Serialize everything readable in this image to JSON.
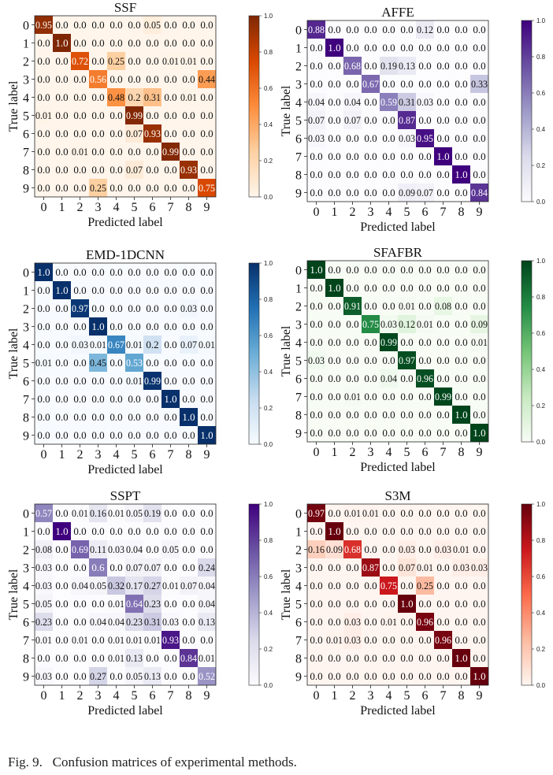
{
  "caption": "Fig. 9.   Confusion matrices of experimental methods.",
  "chart_data": [
    {
      "type": "heatmap",
      "title": "SSF",
      "xlabel": "Predicted label",
      "ylabel": "True label",
      "x_ticks": [
        "0",
        "1",
        "2",
        "3",
        "4",
        "5",
        "6",
        "7",
        "8",
        "9"
      ],
      "y_ticks": [
        "0",
        "1",
        "2",
        "3",
        "4",
        "5",
        "6",
        "7",
        "8",
        "9"
      ],
      "colormap": "Oranges",
      "colors": [
        "#fff5eb",
        "#fdd0a2",
        "#fd8d3c",
        "#d94801",
        "#7f2704"
      ],
      "colorbar_ticks": [
        "0.0",
        "0.2",
        "0.4",
        "0.6",
        "0.8",
        "1.0"
      ],
      "vmin": 0,
      "vmax": 1,
      "labels": [
        [
          "0.95",
          "0.0",
          "0.0",
          "0.0",
          "0.0",
          "0.0",
          "0.05",
          "0.0",
          "0.0",
          "0.0"
        ],
        [
          "0.0",
          "1.0",
          "0.0",
          "0.0",
          "0.0",
          "0.0",
          "0.0",
          "0.0",
          "0.0",
          "0.0"
        ],
        [
          "0.0",
          "0.0",
          "0.72",
          "0.0",
          "0.25",
          "0.0",
          "0.0",
          "0.01",
          "0.01",
          "0.0"
        ],
        [
          "0.0",
          "0.0",
          "0.0",
          "0.56",
          "0.0",
          "0.0",
          "0.0",
          "0.0",
          "0.0",
          "0.44"
        ],
        [
          "0.0",
          "0.0",
          "0.0",
          "0.0",
          "0.48",
          "0.2",
          "0.31",
          "0.0",
          "0.01",
          "0.0"
        ],
        [
          "0.01",
          "0.0",
          "0.0",
          "0.0",
          "0.0",
          "0.99",
          "0.0",
          "0.0",
          "0.0",
          "0.0"
        ],
        [
          "0.0",
          "0.0",
          "0.0",
          "0.0",
          "0.0",
          "0.07",
          "0.93",
          "0.0",
          "0.0",
          "0.0"
        ],
        [
          "0.0",
          "0.0",
          "0.01",
          "0.0",
          "0.0",
          "0.0",
          "0.0",
          "0.99",
          "0.0",
          "0.0"
        ],
        [
          "0.0",
          "0.0",
          "0.0",
          "0.0",
          "0.0",
          "0.07",
          "0.0",
          "0.0",
          "0.93",
          "0.0"
        ],
        [
          "0.0",
          "0.0",
          "0.0",
          "0.25",
          "0.0",
          "0.0",
          "0.0",
          "0.0",
          "0.0",
          "0.75"
        ]
      ]
    },
    {
      "type": "heatmap",
      "title": "AFFE",
      "xlabel": "Predicted label",
      "ylabel": "True label",
      "x_ticks": [
        "0",
        "1",
        "2",
        "3",
        "4",
        "5",
        "6",
        "7",
        "8",
        "9"
      ],
      "y_ticks": [
        "0",
        "1",
        "2",
        "3",
        "4",
        "5",
        "6",
        "7",
        "8",
        "9"
      ],
      "colormap": "Purples",
      "colors": [
        "#fcfbfd",
        "#dadaeb",
        "#9e9ac8",
        "#6a51a3",
        "#3f007d"
      ],
      "colorbar_ticks": [
        "0.0",
        "0.2",
        "0.4",
        "0.6",
        "0.8",
        "1.0"
      ],
      "vmin": 0,
      "vmax": 1,
      "labels": [
        [
          "0.88",
          "0.0",
          "0.0",
          "0.0",
          "0.0",
          "0.0",
          "0.12",
          "0.0",
          "0.0",
          "0.0"
        ],
        [
          "0.0",
          "1.0",
          "0.0",
          "0.0",
          "0.0",
          "0.0",
          "0.0",
          "0.0",
          "0.0",
          "0.0"
        ],
        [
          "0.0",
          "0.0",
          "0.68",
          "0.0",
          "0.19",
          "0.13",
          "0.0",
          "0.0",
          "0.0",
          "0.0"
        ],
        [
          "0.0",
          "0.0",
          "0.0",
          "0.67",
          "0.0",
          "0.0",
          "0.0",
          "0.0",
          "0.0",
          "0.33"
        ],
        [
          "0.04",
          "0.0",
          "0.04",
          "0.0",
          "0.59",
          "0.31",
          "0.03",
          "0.0",
          "0.0",
          "0.0"
        ],
        [
          "0.07",
          "0.0",
          "0.07",
          "0.0",
          "0.0",
          "0.87",
          "0.0",
          "0.0",
          "0.0",
          "0.0"
        ],
        [
          "0.03",
          "0.0",
          "0.0",
          "0.0",
          "0.0",
          "0.03",
          "0.95",
          "0.0",
          "0.0",
          "0.0"
        ],
        [
          "0.0",
          "0.0",
          "0.0",
          "0.0",
          "0.0",
          "0.0",
          "0.0",
          "1.0",
          "0.0",
          "0.0"
        ],
        [
          "0.0",
          "0.0",
          "0.0",
          "0.0",
          "0.0",
          "0.0",
          "0.0",
          "0.0",
          "1.0",
          "0.0"
        ],
        [
          "0.0",
          "0.0",
          "0.0",
          "0.0",
          "0.0",
          "0.09",
          "0.07",
          "0.0",
          "0.0",
          "0.84"
        ]
      ]
    },
    {
      "type": "heatmap",
      "title": "EMD-1DCNN",
      "xlabel": "Predicted label",
      "ylabel": "True label",
      "x_ticks": [
        "0",
        "1",
        "2",
        "3",
        "4",
        "5",
        "6",
        "7",
        "8",
        "9"
      ],
      "y_ticks": [
        "0",
        "1",
        "2",
        "3",
        "4",
        "5",
        "6",
        "7",
        "8",
        "9"
      ],
      "colormap": "Blues",
      "colors": [
        "#f7fbff",
        "#c6dbef",
        "#6baed6",
        "#2171b5",
        "#08306b"
      ],
      "colorbar_ticks": [
        "0.0",
        "0.2",
        "0.4",
        "0.6",
        "0.8",
        "1.0"
      ],
      "vmin": 0,
      "vmax": 1,
      "labels": [
        [
          "1.0",
          "0.0",
          "0.0",
          "0.0",
          "0.0",
          "0.0",
          "0.0",
          "0.0",
          "0.0",
          "0.0"
        ],
        [
          "0.0",
          "1.0",
          "0.0",
          "0.0",
          "0.0",
          "0.0",
          "0.0",
          "0.0",
          "0.0",
          "0.0"
        ],
        [
          "0.0",
          "0.0",
          "0.97",
          "0.0",
          "0.0",
          "0.0",
          "0.0",
          "0.0",
          "0.03",
          "0.0"
        ],
        [
          "0.0",
          "0.0",
          "0.0",
          "1.0",
          "0.0",
          "0.0",
          "0.0",
          "0.0",
          "0.0",
          "0.0"
        ],
        [
          "0.0",
          "0.0",
          "0.03",
          "0.01",
          "0.67",
          "0.01",
          "0.2",
          "0.0",
          "0.07",
          "0.01"
        ],
        [
          "0.01",
          "0.0",
          "0.0",
          "0.45",
          "0.0",
          "0.53",
          "0.0",
          "0.0",
          "0.0",
          "0.0"
        ],
        [
          "0.0",
          "0.0",
          "0.0",
          "0.0",
          "0.0",
          "0.01",
          "0.99",
          "0.0",
          "0.0",
          "0.0"
        ],
        [
          "0.0",
          "0.0",
          "0.0",
          "0.0",
          "0.0",
          "0.0",
          "0.0",
          "1.0",
          "0.0",
          "0.0"
        ],
        [
          "0.0",
          "0.0",
          "0.0",
          "0.0",
          "0.0",
          "0.0",
          "0.0",
          "0.0",
          "1.0",
          "0.0"
        ],
        [
          "0.0",
          "0.0",
          "0.0",
          "0.0",
          "0.0",
          "0.0",
          "0.0",
          "0.0",
          "0.0",
          "1.0"
        ]
      ]
    },
    {
      "type": "heatmap",
      "title": "SFAFBR",
      "xlabel": "Predicted label",
      "ylabel": "True label",
      "x_ticks": [
        "0",
        "1",
        "2",
        "3",
        "4",
        "5",
        "6",
        "7",
        "8",
        "9"
      ],
      "y_ticks": [
        "0",
        "1",
        "2",
        "3",
        "4",
        "5",
        "6",
        "7",
        "8",
        "9"
      ],
      "colormap": "Greens",
      "colors": [
        "#f7fcf5",
        "#c7e9c0",
        "#74c476",
        "#238b45",
        "#00441b"
      ],
      "colorbar_ticks": [
        "0.0",
        "0.2",
        "0.4",
        "0.6",
        "0.8",
        "1.0"
      ],
      "vmin": 0,
      "vmax": 1,
      "labels": [
        [
          "1.0",
          "0.0",
          "0.0",
          "0.0",
          "0.0",
          "0.0",
          "0.0",
          "0.0",
          "0.0",
          "0.0"
        ],
        [
          "0.0",
          "1.0",
          "0.0",
          "0.0",
          "0.0",
          "0.0",
          "0.0",
          "0.0",
          "0.0",
          "0.0"
        ],
        [
          "0.0",
          "0.0",
          "0.91",
          "0.0",
          "0.0",
          "0.01",
          "0.0",
          "0.08",
          "0.0",
          "0.0"
        ],
        [
          "0.0",
          "0.0",
          "0.0",
          "0.75",
          "0.03",
          "0.12",
          "0.01",
          "0.0",
          "0.0",
          "0.09"
        ],
        [
          "0.0",
          "0.0",
          "0.0",
          "0.0",
          "0.99",
          "0.0",
          "0.0",
          "0.0",
          "0.0",
          "0.01"
        ],
        [
          "0.03",
          "0.0",
          "0.0",
          "0.0",
          "0.0",
          "0.97",
          "0.0",
          "0.0",
          "0.0",
          "0.0"
        ],
        [
          "0.0",
          "0.0",
          "0.0",
          "0.0",
          "0.04",
          "0.0",
          "0.96",
          "0.0",
          "0.0",
          "0.0"
        ],
        [
          "0.0",
          "0.0",
          "0.01",
          "0.0",
          "0.0",
          "0.0",
          "0.0",
          "0.99",
          "0.0",
          "0.0"
        ],
        [
          "0.0",
          "0.0",
          "0.0",
          "0.0",
          "0.0",
          "0.0",
          "0.0",
          "0.0",
          "1.0",
          "0.0"
        ],
        [
          "0.0",
          "0.0",
          "0.0",
          "0.0",
          "0.0",
          "0.0",
          "0.0",
          "0.0",
          "0.0",
          "1.0"
        ]
      ]
    },
    {
      "type": "heatmap",
      "title": "SSPT",
      "xlabel": "Predicted label",
      "ylabel": "True label",
      "x_ticks": [
        "0",
        "1",
        "2",
        "3",
        "4",
        "5",
        "6",
        "7",
        "8",
        "9"
      ],
      "y_ticks": [
        "0",
        "1",
        "2",
        "3",
        "4",
        "5",
        "6",
        "7",
        "8",
        "9"
      ],
      "colormap": "Purples",
      "colors": [
        "#fcfbfd",
        "#dadaeb",
        "#9e9ac8",
        "#6a51a3",
        "#3f007d"
      ],
      "colorbar_ticks": [
        "0.0",
        "0.2",
        "0.4",
        "0.6",
        "0.8",
        "1.0"
      ],
      "vmin": 0,
      "vmax": 1,
      "labels": [
        [
          "0.57",
          "0.0",
          "0.01",
          "0.16",
          "0.01",
          "0.05",
          "0.19",
          "0.0",
          "0.0",
          "0.0"
        ],
        [
          "0.0",
          "1.0",
          "0.0",
          "0.0",
          "0.0",
          "0.0",
          "0.0",
          "0.0",
          "0.0",
          "0.0"
        ],
        [
          "0.08",
          "0.0",
          "0.69",
          "0.11",
          "0.03",
          "0.04",
          "0.0",
          "0.05",
          "0.0",
          "0.0"
        ],
        [
          "0.03",
          "0.0",
          "0.0",
          "0.6",
          "0.0",
          "0.07",
          "0.07",
          "0.0",
          "0.0",
          "0.24"
        ],
        [
          "0.03",
          "0.0",
          "0.04",
          "0.05",
          "0.32",
          "0.17",
          "0.27",
          "0.01",
          "0.07",
          "0.04"
        ],
        [
          "0.05",
          "0.0",
          "0.0",
          "0.0",
          "0.01",
          "0.64",
          "0.23",
          "0.0",
          "0.0",
          "0.04"
        ],
        [
          "0.23",
          "0.0",
          "0.0",
          "0.04",
          "0.04",
          "0.23",
          "0.31",
          "0.03",
          "0.0",
          "0.13"
        ],
        [
          "0.01",
          "0.0",
          "0.01",
          "0.0",
          "0.01",
          "0.01",
          "0.01",
          "0.93",
          "0.0",
          "0.0"
        ],
        [
          "0.0",
          "0.0",
          "0.0",
          "0.0",
          "0.01",
          "0.13",
          "0.0",
          "0.0",
          "0.84",
          "0.01"
        ],
        [
          "0.03",
          "0.0",
          "0.0",
          "0.27",
          "0.0",
          "0.05",
          "0.13",
          "0.0",
          "0.0",
          "0.52"
        ]
      ]
    },
    {
      "type": "heatmap",
      "title": "S3M",
      "xlabel": "Predicted label",
      "ylabel": "True label",
      "x_ticks": [
        "0",
        "1",
        "2",
        "3",
        "4",
        "5",
        "6",
        "7",
        "8",
        "9"
      ],
      "y_ticks": [
        "0",
        "1",
        "2",
        "3",
        "4",
        "5",
        "6",
        "7",
        "8",
        "9"
      ],
      "colormap": "Reds",
      "colors": [
        "#fff5f0",
        "#fcbba1",
        "#fb6a4a",
        "#cb181d",
        "#67000d"
      ],
      "colorbar_ticks": [
        "0.0",
        "0.2",
        "0.4",
        "0.6",
        "0.8",
        "1.0"
      ],
      "vmin": 0,
      "vmax": 1,
      "labels": [
        [
          "0.97",
          "0.0",
          "0.01",
          "0.01",
          "0.0",
          "0.0",
          "0.0",
          "0.0",
          "0.0",
          "0.0"
        ],
        [
          "0.0",
          "1.0",
          "0.0",
          "0.0",
          "0.0",
          "0.0",
          "0.0",
          "0.0",
          "0.0",
          "0.0"
        ],
        [
          "0.16",
          "0.09",
          "0.68",
          "0.0",
          "0.0",
          "0.03",
          "0.0",
          "0.03",
          "0.01",
          "0.0"
        ],
        [
          "0.0",
          "0.0",
          "0.0",
          "0.87",
          "0.0",
          "0.07",
          "0.01",
          "0.0",
          "0.03",
          "0.03"
        ],
        [
          "0.0",
          "0.0",
          "0.0",
          "0.0",
          "0.75",
          "0.0",
          "0.25",
          "0.0",
          "0.0",
          "0.0"
        ],
        [
          "0.0",
          "0.0",
          "0.0",
          "0.0",
          "0.0",
          "1.0",
          "0.0",
          "0.0",
          "0.0",
          "0.0"
        ],
        [
          "0.0",
          "0.0",
          "0.03",
          "0.0",
          "0.01",
          "0.0",
          "0.96",
          "0.0",
          "0.0",
          "0.0"
        ],
        [
          "0.0",
          "0.01",
          "0.03",
          "0.0",
          "0.0",
          "0.0",
          "0.0",
          "0.96",
          "0.0",
          "0.0"
        ],
        [
          "0.0",
          "0.0",
          "0.0",
          "0.0",
          "0.0",
          "0.0",
          "0.0",
          "0.0",
          "1.0",
          "0.0"
        ],
        [
          "0.0",
          "0.0",
          "0.0",
          "0.0",
          "0.0",
          "0.0",
          "0.0",
          "0.0",
          "0.0",
          "1.0"
        ]
      ]
    }
  ]
}
